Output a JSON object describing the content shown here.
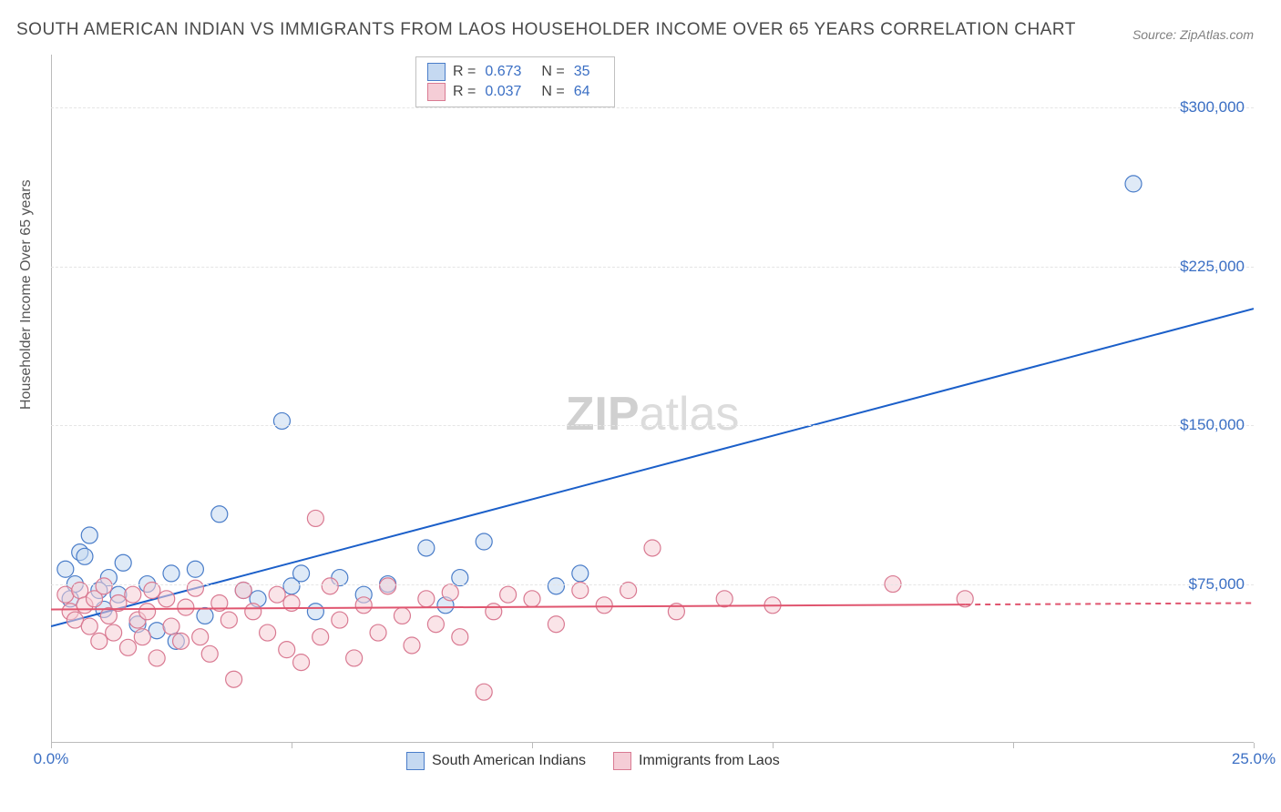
{
  "title": "SOUTH AMERICAN INDIAN VS IMMIGRANTS FROM LAOS HOUSEHOLDER INCOME OVER 65 YEARS CORRELATION CHART",
  "source": "Source: ZipAtlas.com",
  "ylabel": "Householder Income Over 65 years",
  "watermark": {
    "bold": "ZIP",
    "rest": "atlas"
  },
  "chart": {
    "type": "scatter",
    "xlim": [
      0,
      25
    ],
    "ylim": [
      0,
      325000
    ],
    "xticks": [
      {
        "pos": 0,
        "label": "0.0%"
      },
      {
        "pos": 25,
        "label": "25.0%"
      }
    ],
    "xtick_marks": [
      0,
      5,
      10,
      15,
      20,
      25
    ],
    "yticks": [
      {
        "pos": 75000,
        "label": "$75,000"
      },
      {
        "pos": 150000,
        "label": "$150,000"
      },
      {
        "pos": 225000,
        "label": "$225,000"
      },
      {
        "pos": 300000,
        "label": "$300,000"
      }
    ],
    "grid_y": [
      75000,
      150000,
      225000,
      300000
    ],
    "background_color": "#ffffff",
    "grid_color": "#e5e5e5",
    "series": [
      {
        "name": "South American Indians",
        "color_fill": "#c5d9f1",
        "color_stroke": "#4a7dc9",
        "R": "0.673",
        "N": "35",
        "trend": {
          "x1": 0,
          "y1": 55000,
          "x2": 25,
          "y2": 205000,
          "solid_to_x": 25,
          "color": "#1b5fc9",
          "width": 2
        },
        "points": [
          [
            0.3,
            82000
          ],
          [
            0.4,
            68000
          ],
          [
            0.5,
            75000
          ],
          [
            0.6,
            90000
          ],
          [
            0.8,
            98000
          ],
          [
            1.0,
            72000
          ],
          [
            1.1,
            63000
          ],
          [
            1.2,
            78000
          ],
          [
            1.4,
            70000
          ],
          [
            1.5,
            85000
          ],
          [
            1.8,
            56000
          ],
          [
            2.0,
            75000
          ],
          [
            2.2,
            53000
          ],
          [
            2.5,
            80000
          ],
          [
            2.6,
            48000
          ],
          [
            3.0,
            82000
          ],
          [
            3.2,
            60000
          ],
          [
            3.5,
            108000
          ],
          [
            4.0,
            72000
          ],
          [
            4.3,
            68000
          ],
          [
            4.8,
            152000
          ],
          [
            5.0,
            74000
          ],
          [
            5.2,
            80000
          ],
          [
            5.5,
            62000
          ],
          [
            6.0,
            78000
          ],
          [
            6.5,
            70000
          ],
          [
            7.0,
            75000
          ],
          [
            7.8,
            92000
          ],
          [
            8.2,
            65000
          ],
          [
            8.5,
            78000
          ],
          [
            9.0,
            95000
          ],
          [
            10.5,
            74000
          ],
          [
            11.0,
            80000
          ],
          [
            22.5,
            264000
          ],
          [
            0.7,
            88000
          ]
        ]
      },
      {
        "name": "Immigrants from Laos",
        "color_fill": "#f5cdd6",
        "color_stroke": "#d97a92",
        "R": "0.037",
        "N": "64",
        "trend": {
          "x1": 0,
          "y1": 63000,
          "x2": 25,
          "y2": 66000,
          "solid_to_x": 19,
          "color": "#e0556f",
          "width": 2
        },
        "points": [
          [
            0.3,
            70000
          ],
          [
            0.4,
            62000
          ],
          [
            0.5,
            58000
          ],
          [
            0.6,
            72000
          ],
          [
            0.7,
            65000
          ],
          [
            0.8,
            55000
          ],
          [
            0.9,
            68000
          ],
          [
            1.0,
            48000
          ],
          [
            1.1,
            74000
          ],
          [
            1.2,
            60000
          ],
          [
            1.3,
            52000
          ],
          [
            1.4,
            66000
          ],
          [
            1.6,
            45000
          ],
          [
            1.7,
            70000
          ],
          [
            1.8,
            58000
          ],
          [
            1.9,
            50000
          ],
          [
            2.0,
            62000
          ],
          [
            2.1,
            72000
          ],
          [
            2.2,
            40000
          ],
          [
            2.4,
            68000
          ],
          [
            2.5,
            55000
          ],
          [
            2.7,
            48000
          ],
          [
            2.8,
            64000
          ],
          [
            3.0,
            73000
          ],
          [
            3.1,
            50000
          ],
          [
            3.3,
            42000
          ],
          [
            3.5,
            66000
          ],
          [
            3.7,
            58000
          ],
          [
            3.8,
            30000
          ],
          [
            4.0,
            72000
          ],
          [
            4.2,
            62000
          ],
          [
            4.5,
            52000
          ],
          [
            4.7,
            70000
          ],
          [
            4.9,
            44000
          ],
          [
            5.0,
            66000
          ],
          [
            5.2,
            38000
          ],
          [
            5.5,
            106000
          ],
          [
            5.6,
            50000
          ],
          [
            5.8,
            74000
          ],
          [
            6.0,
            58000
          ],
          [
            6.3,
            40000
          ],
          [
            6.5,
            65000
          ],
          [
            6.8,
            52000
          ],
          [
            7.0,
            74000
          ],
          [
            7.3,
            60000
          ],
          [
            7.5,
            46000
          ],
          [
            7.8,
            68000
          ],
          [
            8.0,
            56000
          ],
          [
            8.3,
            71000
          ],
          [
            8.5,
            50000
          ],
          [
            9.0,
            24000
          ],
          [
            9.2,
            62000
          ],
          [
            9.5,
            70000
          ],
          [
            10.0,
            68000
          ],
          [
            10.5,
            56000
          ],
          [
            11.0,
            72000
          ],
          [
            11.5,
            65000
          ],
          [
            12.0,
            72000
          ],
          [
            12.5,
            92000
          ],
          [
            13.0,
            62000
          ],
          [
            14.0,
            68000
          ],
          [
            15.0,
            65000
          ],
          [
            17.5,
            75000
          ],
          [
            19.0,
            68000
          ]
        ]
      }
    ],
    "marker_radius": 9,
    "marker_opacity": 0.55,
    "label_fontsize": 17,
    "title_fontsize": 19
  }
}
